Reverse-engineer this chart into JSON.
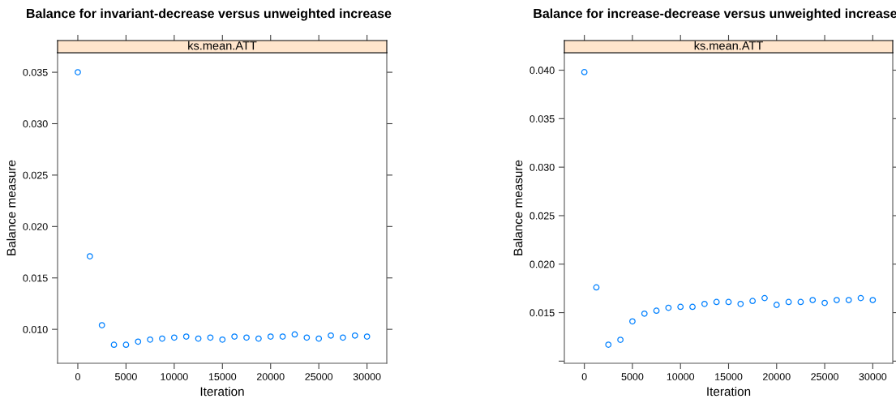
{
  "chart_data": [
    {
      "type": "scatter",
      "title": "Balance for invariant-decrease versus unweighted increase",
      "subtitle": "ks.mean.ATT",
      "xlabel": "Iteration",
      "ylabel": "Balance measure",
      "marker": "circle",
      "grid": false,
      "legend": false,
      "x": [
        0,
        1250,
        2500,
        3750,
        5000,
        6250,
        7500,
        8750,
        10000,
        11250,
        12500,
        13750,
        15000,
        16250,
        17500,
        18750,
        20000,
        21250,
        22500,
        23750,
        25000,
        26250,
        27500,
        28750,
        30000
      ],
      "series": [
        {
          "color": "#0080ff",
          "values": [
            0.035,
            0.0171,
            0.0104,
            0.0085,
            0.0085,
            0.0088,
            0.009,
            0.0091,
            0.0092,
            0.0093,
            0.0091,
            0.0092,
            0.009,
            0.0093,
            0.0092,
            0.0091,
            0.0093,
            0.0093,
            0.0095,
            0.0092,
            0.0091,
            0.0094,
            0.0092,
            0.0094,
            0.0093
          ]
        }
      ],
      "xlim": [
        -2100,
        32050
      ],
      "xticks": [
        0,
        5000,
        10000,
        15000,
        20000,
        25000,
        30000
      ],
      "ylim": [
        0.0067,
        0.0369
      ],
      "yticks": [
        {
          "value": 0.01,
          "label": "0.010"
        },
        0.015,
        {
          "value": 0.02,
          "label": "0.020"
        },
        0.025,
        {
          "value": 0.03,
          "label": "0.030"
        },
        0.035
      ]
    },
    {
      "type": "scatter",
      "title": "Balance for increase-decrease versus unweighted increase",
      "subtitle": "ks.mean.ATT",
      "xlabel": "Iteration",
      "ylabel": "Balance measure",
      "marker": "circle",
      "grid": false,
      "legend": false,
      "x": [
        0,
        1250,
        2500,
        3750,
        5000,
        6250,
        7500,
        8750,
        10000,
        11250,
        12500,
        13750,
        15000,
        16250,
        17500,
        18750,
        20000,
        21250,
        22500,
        23750,
        25000,
        26250,
        27500,
        28750,
        30000
      ],
      "series": [
        {
          "color": "#0080ff",
          "values": [
            0.0398,
            0.0176,
            0.0117,
            0.0122,
            0.0141,
            0.0149,
            0.0152,
            0.0155,
            0.0156,
            0.0156,
            0.0159,
            0.0161,
            0.0161,
            0.0159,
            0.0162,
            0.0165,
            0.0158,
            0.0161,
            0.0161,
            0.0163,
            0.016,
            0.0163,
            0.0163,
            0.0165,
            0.0163
          ]
        }
      ],
      "xlim": [
        -2080,
        32080
      ],
      "xticks": [
        0,
        5000,
        10000,
        15000,
        20000,
        25000,
        30000
      ],
      "ylim": [
        0.00978,
        0.0418
      ],
      "yticks": [
        {
          "value": 0.01,
          "label": null
        },
        0.015,
        {
          "value": 0.02,
          "label": "0.020"
        },
        0.025,
        {
          "value": 0.03,
          "label": "0.030"
        },
        0.035,
        {
          "value": 0.04,
          "label": "0.040"
        }
      ]
    }
  ]
}
